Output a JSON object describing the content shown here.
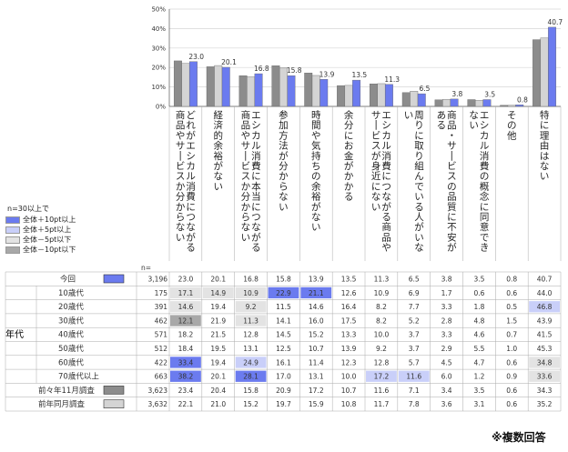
{
  "chart_data": {
    "type": "bar",
    "title": "",
    "ylabel": "",
    "ylim": [
      0,
      50
    ],
    "yticks": [
      "0%",
      "10%",
      "20%",
      "30%",
      "40%",
      "50%"
    ],
    "n_label": "n=",
    "categories": [
      "どれがエシカル消費につながる商品やサービスか分からない",
      "経済的余裕がない",
      "エシカル消費に本当につながる商品やサービスか分からない",
      "参加方法が分からない",
      "時間や気持ちの余裕がない",
      "余分にお金がかかる",
      "エシカル消費につながる商品やサービスが身近にない",
      "周りに取り組んでいる人がいない",
      "商品・サービスの品質に不安がある",
      "エシカル消費の概念に同意できない",
      "その他",
      "特に理由はない"
    ],
    "series": [
      {
        "name": "前々年11月調査",
        "n": "3,623",
        "values": [
          23.4,
          20.4,
          15.8,
          20.9,
          17.2,
          10.7,
          11.6,
          7.1,
          3.4,
          3.5,
          0.6,
          34.3
        ]
      },
      {
        "name": "前年同月調査",
        "n": "3,632",
        "values": [
          22.1,
          21.0,
          15.2,
          19.7,
          15.9,
          10.8,
          11.7,
          7.8,
          3.6,
          3.1,
          0.6,
          35.2
        ]
      },
      {
        "name": "今回",
        "n": "3,196",
        "values": [
          23.0,
          20.1,
          16.8,
          15.8,
          13.9,
          13.5,
          11.3,
          6.5,
          3.8,
          3.5,
          0.8,
          40.7
        ]
      }
    ],
    "data_labels": [
      "23.0",
      "20.1",
      "16.8",
      "15.8",
      "13.9",
      "13.5",
      "11.3",
      "6.5",
      "3.8",
      "3.5",
      "0.8",
      "40.7"
    ],
    "legend": {
      "title": "n=30以上で",
      "items": [
        {
          "label": "全体＋10pt以上",
          "color": "#6b7bef"
        },
        {
          "label": "全体＋5pt以上",
          "color": "#c9cff9"
        },
        {
          "label": "全体－5pt以下",
          "color": "#e3e3e3"
        },
        {
          "label": "全体－10pt以下",
          "color": "#a8a8a8"
        }
      ]
    },
    "group_label": "年代",
    "table": [
      {
        "label": "今回",
        "n": "3,196",
        "values": [
          "23.0",
          "20.1",
          "16.8",
          "15.8",
          "13.9",
          "13.5",
          "11.3",
          "6.5",
          "3.8",
          "3.5",
          "0.8",
          "40.7"
        ],
        "marks": [
          0,
          0,
          0,
          0,
          0,
          0,
          0,
          0,
          0,
          0,
          0,
          0
        ]
      },
      {
        "label": "10歳代",
        "n": "175",
        "values": [
          "17.1",
          "14.9",
          "10.9",
          "22.9",
          "21.1",
          "12.6",
          "10.9",
          "6.9",
          "1.7",
          "0.6",
          "0.6",
          "44.0"
        ],
        "marks": [
          -1,
          -1,
          -1,
          2,
          2,
          0,
          0,
          0,
          0,
          0,
          0,
          0
        ]
      },
      {
        "label": "20歳代",
        "n": "391",
        "values": [
          "14.6",
          "19.4",
          "9.2",
          "11.5",
          "14.6",
          "16.4",
          "8.2",
          "7.7",
          "3.3",
          "1.8",
          "0.5",
          "46.8"
        ],
        "marks": [
          -1,
          0,
          -1,
          0,
          0,
          0,
          0,
          0,
          0,
          0,
          0,
          1
        ]
      },
      {
        "label": "30歳代",
        "n": "462",
        "values": [
          "12.1",
          "21.9",
          "11.3",
          "14.1",
          "16.0",
          "17.5",
          "8.2",
          "5.2",
          "2.8",
          "4.8",
          "1.5",
          "43.9"
        ],
        "marks": [
          -2,
          0,
          -1,
          0,
          0,
          0,
          0,
          0,
          0,
          0,
          0,
          0
        ]
      },
      {
        "label": "40歳代",
        "n": "571",
        "values": [
          "18.2",
          "21.5",
          "12.8",
          "14.5",
          "15.2",
          "13.3",
          "10.0",
          "3.7",
          "3.3",
          "4.6",
          "0.7",
          "41.5"
        ],
        "marks": [
          0,
          0,
          0,
          0,
          0,
          0,
          0,
          0,
          0,
          0,
          0,
          0
        ]
      },
      {
        "label": "50歳代",
        "n": "512",
        "values": [
          "18.4",
          "19.5",
          "13.1",
          "12.5",
          "10.7",
          "13.9",
          "9.2",
          "3.7",
          "2.9",
          "5.5",
          "1.0",
          "45.3"
        ],
        "marks": [
          0,
          0,
          0,
          0,
          0,
          0,
          0,
          0,
          0,
          0,
          0,
          0
        ]
      },
      {
        "label": "60歳代",
        "n": "422",
        "values": [
          "33.4",
          "19.4",
          "24.9",
          "16.1",
          "11.4",
          "12.3",
          "12.8",
          "5.7",
          "4.5",
          "4.7",
          "0.6",
          "34.8"
        ],
        "marks": [
          2,
          0,
          1,
          0,
          0,
          0,
          0,
          0,
          0,
          0,
          0,
          -1
        ]
      },
      {
        "label": "70歳代以上",
        "n": "663",
        "values": [
          "38.2",
          "20.1",
          "28.1",
          "17.0",
          "13.1",
          "10.0",
          "17.2",
          "11.6",
          "6.0",
          "1.2",
          "0.9",
          "33.6"
        ],
        "marks": [
          2,
          0,
          2,
          0,
          0,
          0,
          1,
          1,
          0,
          0,
          0,
          -1
        ]
      },
      {
        "label": "前々年11月調査",
        "n": "3,623",
        "values": [
          "23.4",
          "20.4",
          "15.8",
          "20.9",
          "17.2",
          "10.7",
          "11.6",
          "7.1",
          "3.4",
          "3.5",
          "0.6",
          "34.3"
        ],
        "marks": [
          0,
          0,
          0,
          0,
          0,
          0,
          0,
          0,
          0,
          0,
          0,
          0
        ]
      },
      {
        "label": "前年同月調査",
        "n": "3,632",
        "values": [
          "22.1",
          "21.0",
          "15.2",
          "19.7",
          "15.9",
          "10.8",
          "11.7",
          "7.8",
          "3.6",
          "3.1",
          "0.6",
          "35.2"
        ],
        "marks": [
          0,
          0,
          0,
          0,
          0,
          0,
          0,
          0,
          0,
          0,
          0,
          0
        ]
      }
    ],
    "colors": {
      "bar_prev2": "#8c8c8c",
      "bar_prev1": "#d4d4d4",
      "bar_current": "#6b7bef",
      "plus10": "#6b7bef",
      "plus5": "#c9cff9",
      "minus5": "#e3e3e3",
      "minus10": "#a8a8a8"
    }
  },
  "footnote": "※複数回答"
}
